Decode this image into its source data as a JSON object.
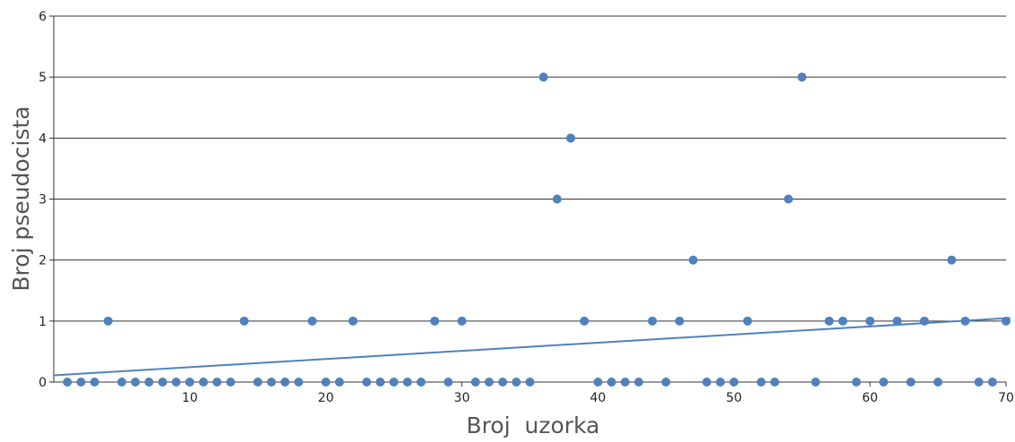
{
  "chart_data": {
    "type": "scatter",
    "xlabel": "Broj  uzorka",
    "ylabel": "Broj pseudocista",
    "xlim": [
      0,
      70
    ],
    "ylim": [
      0,
      6
    ],
    "xticks": [
      10,
      20,
      30,
      40,
      50,
      60,
      70
    ],
    "yticks": [
      0,
      1,
      2,
      3,
      4,
      5,
      6
    ],
    "grid": "horizontal",
    "point_color": "#4f81bd",
    "line_color": "#4f81bd",
    "points": [
      {
        "x": 1,
        "y": 0
      },
      {
        "x": 2,
        "y": 0
      },
      {
        "x": 3,
        "y": 0
      },
      {
        "x": 4,
        "y": 1
      },
      {
        "x": 5,
        "y": 0
      },
      {
        "x": 6,
        "y": 0
      },
      {
        "x": 7,
        "y": 0
      },
      {
        "x": 8,
        "y": 0
      },
      {
        "x": 9,
        "y": 0
      },
      {
        "x": 10,
        "y": 0
      },
      {
        "x": 11,
        "y": 0
      },
      {
        "x": 12,
        "y": 0
      },
      {
        "x": 13,
        "y": 0
      },
      {
        "x": 14,
        "y": 1
      },
      {
        "x": 15,
        "y": 0
      },
      {
        "x": 16,
        "y": 0
      },
      {
        "x": 17,
        "y": 0
      },
      {
        "x": 18,
        "y": 0
      },
      {
        "x": 19,
        "y": 1
      },
      {
        "x": 20,
        "y": 0
      },
      {
        "x": 21,
        "y": 0
      },
      {
        "x": 22,
        "y": 1
      },
      {
        "x": 23,
        "y": 0
      },
      {
        "x": 24,
        "y": 0
      },
      {
        "x": 25,
        "y": 0
      },
      {
        "x": 26,
        "y": 0
      },
      {
        "x": 27,
        "y": 0
      },
      {
        "x": 28,
        "y": 1
      },
      {
        "x": 29,
        "y": 0
      },
      {
        "x": 30,
        "y": 1
      },
      {
        "x": 31,
        "y": 0
      },
      {
        "x": 32,
        "y": 0
      },
      {
        "x": 33,
        "y": 0
      },
      {
        "x": 34,
        "y": 0
      },
      {
        "x": 35,
        "y": 0
      },
      {
        "x": 36,
        "y": 5
      },
      {
        "x": 37,
        "y": 3
      },
      {
        "x": 38,
        "y": 4
      },
      {
        "x": 39,
        "y": 1
      },
      {
        "x": 40,
        "y": 0
      },
      {
        "x": 41,
        "y": 0
      },
      {
        "x": 42,
        "y": 0
      },
      {
        "x": 43,
        "y": 0
      },
      {
        "x": 44,
        "y": 1
      },
      {
        "x": 45,
        "y": 0
      },
      {
        "x": 46,
        "y": 1
      },
      {
        "x": 47,
        "y": 2
      },
      {
        "x": 48,
        "y": 0
      },
      {
        "x": 49,
        "y": 0
      },
      {
        "x": 50,
        "y": 0
      },
      {
        "x": 51,
        "y": 1
      },
      {
        "x": 52,
        "y": 0
      },
      {
        "x": 53,
        "y": 0
      },
      {
        "x": 54,
        "y": 3
      },
      {
        "x": 55,
        "y": 5
      },
      {
        "x": 56,
        "y": 0
      },
      {
        "x": 57,
        "y": 1
      },
      {
        "x": 58,
        "y": 1
      },
      {
        "x": 59,
        "y": 0
      },
      {
        "x": 60,
        "y": 1
      },
      {
        "x": 61,
        "y": 0
      },
      {
        "x": 62,
        "y": 1
      },
      {
        "x": 63,
        "y": 0
      },
      {
        "x": 64,
        "y": 1
      },
      {
        "x": 65,
        "y": 0
      },
      {
        "x": 66,
        "y": 2
      },
      {
        "x": 67,
        "y": 1
      },
      {
        "x": 68,
        "y": 0
      },
      {
        "x": 69,
        "y": 0
      },
      {
        "x": 70,
        "y": 1
      }
    ],
    "trendline": {
      "type": "linear",
      "points": [
        {
          "x": 0,
          "y": 0.11
        },
        {
          "x": 70.3,
          "y": 1.05
        }
      ]
    }
  }
}
